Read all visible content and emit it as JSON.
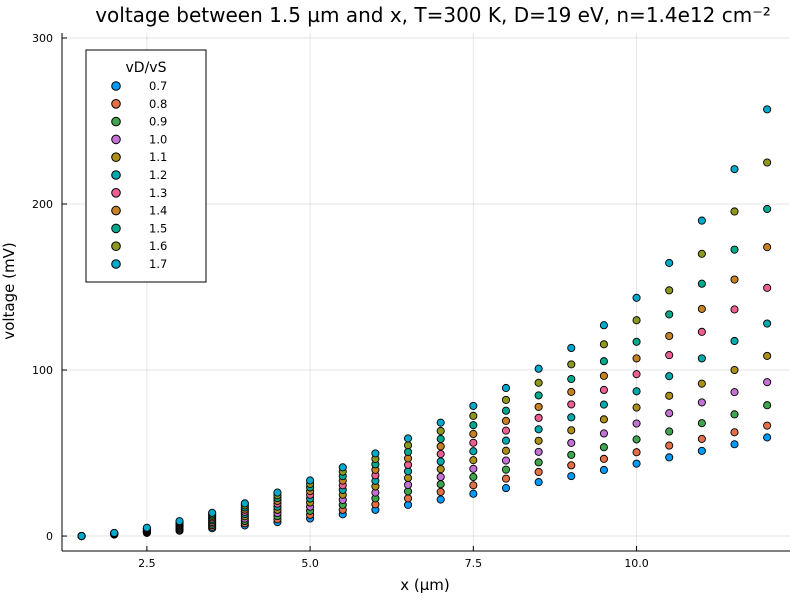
{
  "chart_data": {
    "type": "scatter",
    "title": "voltage between 1.5 µm and x, T=300 K, D=19 eV, n=1.4e12 cm⁻²",
    "xlabel": "x (µm)",
    "ylabel": "voltage (mV)",
    "xlim": [
      1.2,
      12.35
    ],
    "ylim": [
      -9,
      303
    ],
    "xticks": [
      2.5,
      5.0,
      7.5,
      10.0
    ],
    "xtick_labels": [
      "2.5",
      "5.0",
      "7.5",
      "10.0"
    ],
    "yticks": [
      0,
      100,
      200,
      300
    ],
    "ytick_labels": [
      "0",
      "100",
      "200",
      "300"
    ],
    "grid": true,
    "legend_title": "vD/vS",
    "legend_position": "top-left",
    "x": [
      1.5,
      2.0,
      2.5,
      3.0,
      3.5,
      4.0,
      4.5,
      5.0,
      5.5,
      6.0,
      6.5,
      7.0,
      7.5,
      8.0,
      8.5,
      9.0,
      9.5,
      10.0,
      10.5,
      11.0,
      11.5,
      12.0
    ],
    "series": [
      {
        "name": "0.7",
        "color": "#009AFA",
        "values": [
          0,
          0.9,
          1.9,
          3.2,
          4.7,
          6.4,
          8.4,
          10.6,
          13.1,
          15.8,
          18.8,
          22.0,
          25.5,
          28.9,
          32.5,
          36.1,
          39.8,
          43.6,
          47.4,
          51.3,
          55.3,
          59.4
        ]
      },
      {
        "name": "0.8",
        "color": "#E36F47",
        "values": [
          0,
          1.0,
          2.2,
          3.8,
          5.6,
          7.7,
          10.1,
          12.8,
          15.8,
          19.1,
          22.7,
          26.6,
          30.6,
          34.6,
          38.6,
          42.6,
          46.5,
          50.5,
          54.5,
          58.5,
          62.5,
          66.5
        ]
      },
      {
        "name": "0.9",
        "color": "#3EA44E",
        "values": [
          0,
          1.1,
          2.6,
          4.4,
          6.6,
          9.1,
          12.0,
          15.2,
          18.8,
          22.7,
          26.9,
          31.2,
          35.6,
          40.0,
          44.4,
          48.9,
          53.5,
          58.2,
          63.0,
          68.0,
          73.3,
          78.8
        ]
      },
      {
        "name": "1.0",
        "color": "#C371D2",
        "values": [
          0,
          1.2,
          2.9,
          5.0,
          7.6,
          10.5,
          13.9,
          17.7,
          21.8,
          26.2,
          30.8,
          35.6,
          40.5,
          45.5,
          50.7,
          56.1,
          61.8,
          67.8,
          74.0,
          80.5,
          86.7,
          92.7
        ]
      },
      {
        "name": "1.1",
        "color": "#AC8E18",
        "values": [
          0,
          1.3,
          3.2,
          5.6,
          8.5,
          11.9,
          15.8,
          20.2,
          24.9,
          29.9,
          35.0,
          40.3,
          45.7,
          51.4,
          57.4,
          63.7,
          70.3,
          77.4,
          84.5,
          91.8,
          100.0,
          108.5
        ]
      },
      {
        "name": "1.2",
        "color": "#00A9AD",
        "values": [
          0,
          1.4,
          3.5,
          6.2,
          9.5,
          13.3,
          17.7,
          22.6,
          27.8,
          33.3,
          39.0,
          44.9,
          51.1,
          57.5,
          64.3,
          71.5,
          79.2,
          87.2,
          96.3,
          107.0,
          117.5,
          128.0
        ]
      },
      {
        "name": "1.3",
        "color": "#ED5E93",
        "values": [
          0,
          1.5,
          3.8,
          6.8,
          10.4,
          14.6,
          19.5,
          24.9,
          30.6,
          36.6,
          42.9,
          49.4,
          56.2,
          63.5,
          71.2,
          79.3,
          88.0,
          97.5,
          109.0,
          123.0,
          136.5,
          149.5
        ]
      },
      {
        "name": "1.4",
        "color": "#C68125",
        "values": [
          0,
          1.6,
          4.1,
          7.4,
          11.3,
          15.9,
          21.2,
          27.1,
          33.4,
          39.9,
          46.8,
          54.0,
          61.5,
          69.4,
          77.8,
          86.8,
          96.5,
          107.0,
          120.5,
          136.8,
          154.5,
          174.0
        ]
      },
      {
        "name": "1.5",
        "color": "#00A98D",
        "values": [
          0,
          1.7,
          4.4,
          8.0,
          12.2,
          17.2,
          22.9,
          29.3,
          36.1,
          43.2,
          50.7,
          58.5,
          66.8,
          75.5,
          84.7,
          94.6,
          105.3,
          117.0,
          133.5,
          152.0,
          172.5,
          197.0
        ]
      },
      {
        "name": "1.6",
        "color": "#8E971E",
        "values": [
          0,
          1.8,
          4.7,
          8.5,
          13.1,
          18.5,
          24.6,
          31.4,
          38.8,
          46.5,
          54.7,
          63.3,
          72.4,
          82.0,
          92.3,
          103.4,
          115.5,
          130.0,
          148.0,
          170.0,
          195.5,
          225.0
        ]
      },
      {
        "name": "1.7",
        "color": "#00A8CB",
        "values": [
          0,
          1.9,
          5.0,
          9.0,
          14.0,
          19.7,
          26.2,
          33.5,
          41.4,
          49.8,
          58.8,
          68.3,
          78.4,
          89.2,
          100.8,
          113.3,
          127.0,
          143.5,
          164.5,
          190.0,
          221.0,
          257.0
        ]
      }
    ]
  }
}
